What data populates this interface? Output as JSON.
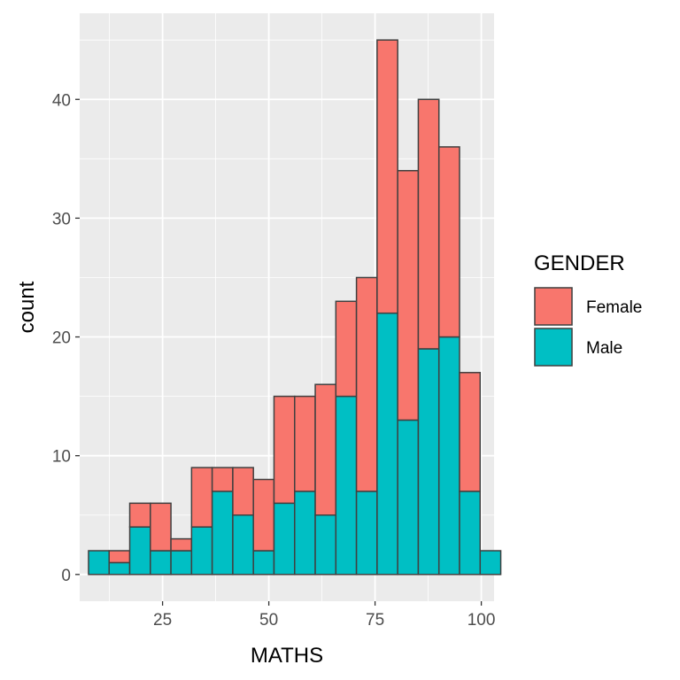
{
  "chart_data": {
    "type": "bar",
    "subtype": "stacked-histogram",
    "title": "",
    "xlabel": "MATHS",
    "ylabel": "count",
    "xlim": [
      5.5,
      103
    ],
    "ylim": [
      -2.25,
      47.25
    ],
    "x_ticks": [
      25,
      50,
      75,
      100
    ],
    "y_ticks": [
      0,
      10,
      20,
      30,
      40
    ],
    "bin_width": 4.85,
    "bin_centers": [
      10.0,
      14.85,
      19.7,
      24.55,
      29.4,
      34.25,
      39.1,
      43.95,
      48.8,
      53.65,
      58.5,
      63.35,
      68.2,
      73.05,
      77.9,
      82.75,
      87.6,
      92.45,
      97.3,
      102.15
    ],
    "legend": {
      "title": "GENDER",
      "position": "right"
    },
    "series": [
      {
        "name": "Male",
        "color": "#00BFC4",
        "values": [
          2,
          1,
          4,
          2,
          2,
          4,
          7,
          5,
          2,
          6,
          7,
          5,
          15,
          7,
          22,
          13,
          19,
          20,
          7,
          2
        ]
      },
      {
        "name": "Female",
        "color": "#F8766D",
        "values": [
          0,
          1,
          2,
          4,
          1,
          5,
          2,
          4,
          6,
          9,
          8,
          11,
          8,
          18,
          23,
          21,
          21,
          16,
          10,
          0
        ]
      }
    ],
    "legend_order": [
      "Female",
      "Male"
    ],
    "panel_background": "#EBEBEB",
    "grid_color": "#FFFFFF",
    "bar_outline": "#404040"
  }
}
